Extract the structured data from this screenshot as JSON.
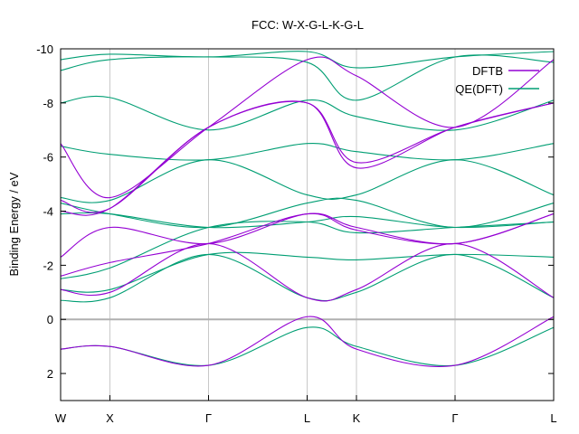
{
  "chart_data": {
    "type": "line",
    "title": "FCC: W-X-G-L-K-G-L",
    "ylabel": "Binding Energy / eV",
    "xlabel": "",
    "ylim": [
      3,
      -10
    ],
    "y_reversed": true,
    "yticks": [
      -10,
      -8,
      -6,
      -4,
      -2,
      0,
      2
    ],
    "xticks": [
      "W",
      "X",
      "Γ",
      "L",
      "K",
      "Γ",
      "L"
    ],
    "x_tick_positions": [
      0,
      0.1,
      0.3,
      0.5,
      0.6,
      0.8,
      1.0
    ],
    "grid": true,
    "legend_position": "top-right",
    "zero_line": 0,
    "colors": {
      "DFTB": "#9400d3",
      "QE(DFT)": "#009e73",
      "zero_line": "#b0b0b0",
      "grid": "#c8c8c8"
    },
    "series": [
      {
        "name": "DFTB",
        "bands": [
          [
            1.1,
            1.0,
            1.7,
            -0.1,
            1.1,
            1.7,
            -0.1
          ],
          [
            -1.1,
            -1.0,
            -2.8,
            -0.8,
            -1.1,
            -2.8,
            -0.8
          ],
          [
            -1.6,
            -2.1,
            -2.8,
            -3.9,
            -3.3,
            -2.8,
            -3.9
          ],
          [
            -2.3,
            -3.4,
            -2.8,
            -3.9,
            -3.4,
            -2.8,
            -3.9
          ],
          [
            -4.0,
            -4.1,
            -7.1,
            -8.0,
            -5.8,
            -7.1,
            -8.0
          ],
          [
            -4.4,
            -4.1,
            -7.1,
            -8.0,
            -5.6,
            -7.1,
            -8.0
          ],
          [
            -6.5,
            -4.5,
            -7.1,
            -9.6,
            -9.0,
            -7.1,
            -9.6
          ]
        ]
      },
      {
        "name": "QE(DFT)",
        "bands": [
          [
            1.1,
            1.0,
            1.7,
            0.3,
            1.0,
            1.7,
            0.3
          ],
          [
            -0.7,
            -0.8,
            -2.4,
            -0.8,
            -1.0,
            -2.4,
            -0.8
          ],
          [
            -1.1,
            -1.1,
            -2.4,
            -2.3,
            -2.2,
            -2.4,
            -2.3
          ],
          [
            -1.5,
            -1.9,
            -3.4,
            -3.6,
            -3.2,
            -3.4,
            -3.6
          ],
          [
            -3.9,
            -3.9,
            -3.4,
            -3.6,
            -3.8,
            -3.4,
            -3.6
          ],
          [
            -4.3,
            -3.9,
            -3.4,
            -4.3,
            -4.4,
            -3.4,
            -4.3
          ],
          [
            -4.5,
            -4.4,
            -5.9,
            -4.6,
            -4.6,
            -5.9,
            -4.6
          ],
          [
            -6.4,
            -6.1,
            -5.9,
            -6.5,
            -6.2,
            -5.9,
            -6.5
          ],
          [
            -8.0,
            -8.2,
            -7.0,
            -8.1,
            -7.5,
            -7.0,
            -8.1
          ],
          [
            -9.2,
            -9.6,
            -9.7,
            -9.5,
            -8.1,
            -9.7,
            -9.5
          ],
          [
            -9.6,
            -9.8,
            -9.7,
            -9.9,
            -9.3,
            -9.7,
            -9.9
          ]
        ]
      }
    ]
  }
}
